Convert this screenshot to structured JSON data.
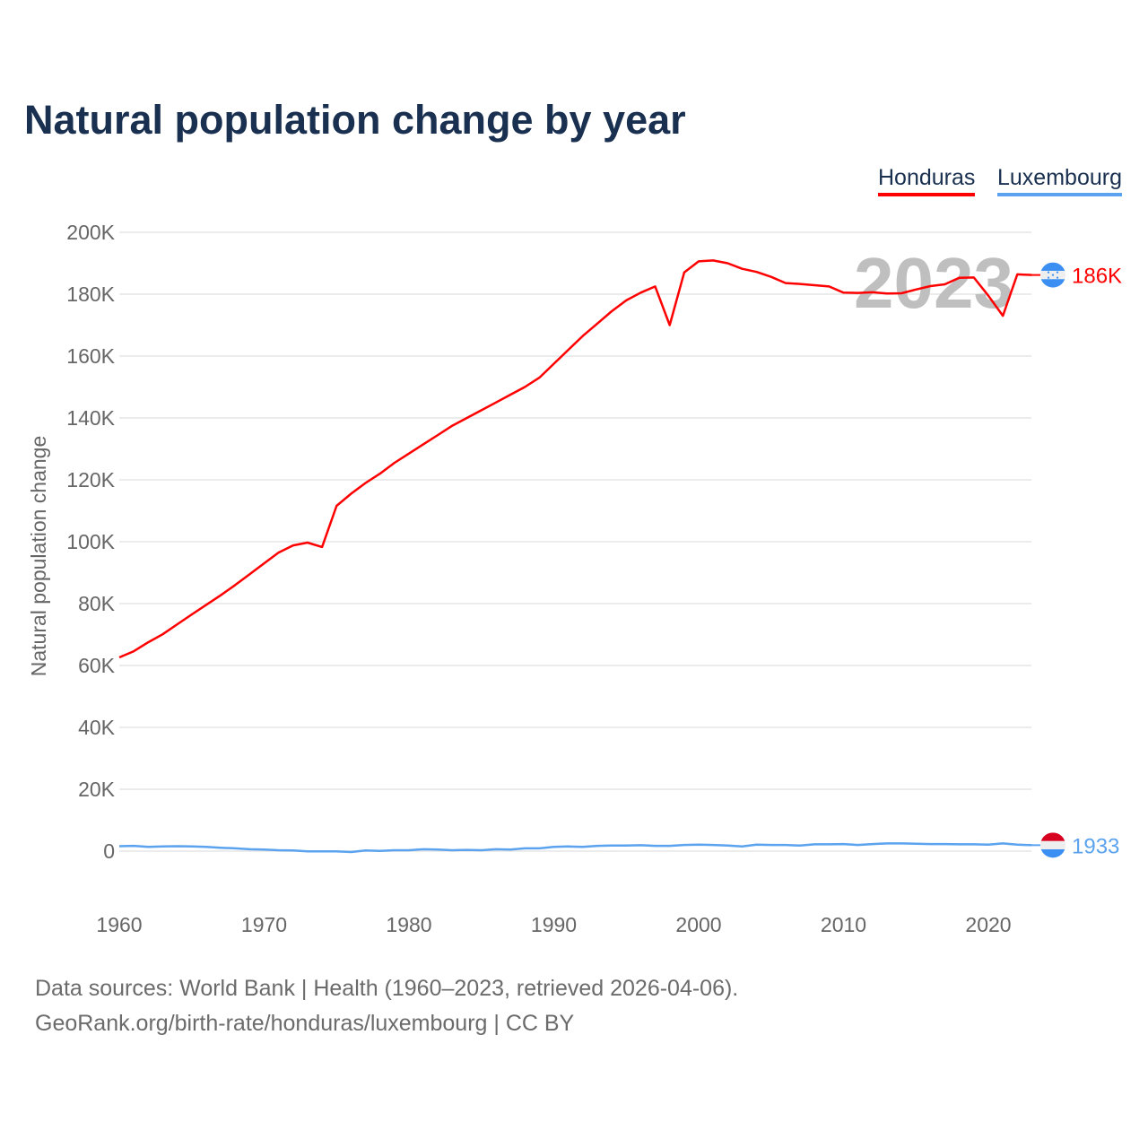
{
  "chart_data": {
    "type": "line",
    "title": "Natural population change by year",
    "xlabel": "",
    "ylabel": "Natural population change",
    "xlim": [
      1960,
      2023
    ],
    "ylim": [
      -10000,
      200000
    ],
    "x_ticks": [
      1960,
      1970,
      1980,
      1990,
      2000,
      2010,
      2020
    ],
    "y_ticks": [
      0,
      20000,
      40000,
      60000,
      80000,
      100000,
      120000,
      140000,
      160000,
      180000,
      200000
    ],
    "y_tick_labels": [
      "0",
      "20K",
      "40K",
      "60K",
      "80K",
      "100K",
      "120K",
      "140K",
      "160K",
      "180K",
      "200K"
    ],
    "grid": true,
    "legend_placement": "top-right",
    "current_year_label": "2023",
    "x": [
      1960,
      1961,
      1962,
      1963,
      1964,
      1965,
      1966,
      1967,
      1968,
      1969,
      1970,
      1971,
      1972,
      1973,
      1974,
      1975,
      1976,
      1977,
      1978,
      1979,
      1980,
      1981,
      1982,
      1983,
      1984,
      1985,
      1986,
      1987,
      1988,
      1989,
      1990,
      1991,
      1992,
      1993,
      1994,
      1995,
      1996,
      1997,
      1998,
      1999,
      2000,
      2001,
      2002,
      2003,
      2004,
      2005,
      2006,
      2007,
      2008,
      2009,
      2010,
      2011,
      2012,
      2013,
      2014,
      2015,
      2016,
      2017,
      2018,
      2019,
      2020,
      2021,
      2022,
      2023
    ],
    "series": [
      {
        "name": "Honduras",
        "color": "#ff0000",
        "end_label": "186K",
        "values": [
          62600,
          64600,
          67500,
          70100,
          73300,
          76500,
          79600,
          82700,
          86000,
          89500,
          93000,
          96500,
          98800,
          99700,
          98300,
          111600,
          115500,
          119000,
          122000,
          125500,
          128500,
          131500,
          134500,
          137500,
          140000,
          142500,
          145000,
          147500,
          150000,
          153000,
          157500,
          162000,
          166500,
          170500,
          174500,
          178000,
          180500,
          182500,
          170000,
          187000,
          190600,
          190900,
          190000,
          188200,
          187200,
          185600,
          183600,
          183300,
          182900,
          182500,
          180500,
          180400,
          180600,
          180200,
          180300,
          181500,
          182600,
          183200,
          185300,
          185400,
          179500,
          173000,
          186400,
          186200
        ]
      },
      {
        "name": "Luxembourg",
        "color": "#5ba3ee",
        "end_label": "1933",
        "values": [
          1600,
          1700,
          1400,
          1500,
          1600,
          1500,
          1400,
          1100,
          900,
          600,
          500,
          300,
          200,
          -100,
          -100,
          -100,
          -300,
          200,
          100,
          300,
          300,
          600,
          500,
          300,
          400,
          300,
          600,
          500,
          900,
          900,
          1400,
          1500,
          1400,
          1700,
          1800,
          1800,
          1900,
          1700,
          1700,
          2000,
          2100,
          2000,
          1800,
          1500,
          2100,
          2000,
          2000,
          1800,
          2200,
          2200,
          2300,
          2000,
          2300,
          2500,
          2500,
          2400,
          2300,
          2300,
          2200,
          2200,
          2100,
          2500,
          2100,
          1933
        ]
      }
    ]
  },
  "footer": {
    "line1": "Data sources: World Bank | Health (1960–2023, retrieved 2026-04-06).",
    "line2": "GeoRank.org/birth-rate/honduras/luxembourg | CC BY"
  }
}
